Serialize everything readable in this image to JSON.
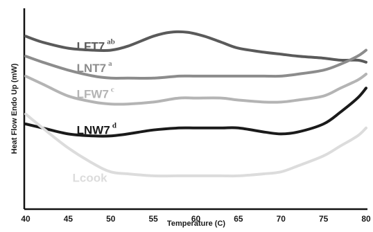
{
  "chart_data": {
    "type": "line",
    "title": "",
    "xlabel": "Temperature (C)",
    "ylabel": "Heat Flow Endo Up (mW)",
    "xlim": [
      40,
      80
    ],
    "x_ticks": [
      "40",
      "45",
      "50",
      "55",
      "60",
      "65",
      "70",
      "75",
      "80"
    ],
    "y_ticks_shown": false,
    "grid": false,
    "legend": "inline labels",
    "series": [
      {
        "name": "LFT7",
        "superscript": "ab",
        "color": "#5a5a5a",
        "x": [
          40,
          42,
          45,
          48,
          50,
          52,
          55,
          57,
          59,
          61,
          63,
          65,
          68,
          70,
          72,
          75,
          77,
          79,
          80
        ],
        "y": [
          0.86,
          0.83,
          0.8,
          0.79,
          0.79,
          0.81,
          0.86,
          0.88,
          0.88,
          0.86,
          0.83,
          0.8,
          0.78,
          0.77,
          0.76,
          0.75,
          0.74,
          0.74,
          0.73
        ]
      },
      {
        "name": "LNT7",
        "superscript": "a",
        "color": "#8c8c8c",
        "x": [
          40,
          42,
          45,
          48,
          50,
          52,
          55,
          58,
          60,
          63,
          65,
          68,
          70,
          72,
          75,
          77,
          79,
          80
        ],
        "y": [
          0.76,
          0.73,
          0.69,
          0.66,
          0.65,
          0.65,
          0.65,
          0.66,
          0.66,
          0.66,
          0.66,
          0.66,
          0.66,
          0.67,
          0.69,
          0.72,
          0.76,
          0.79
        ]
      },
      {
        "name": "LFW7",
        "superscript": "c",
        "color": "#b4b4b4",
        "x": [
          40,
          42,
          45,
          48,
          50,
          52,
          55,
          58,
          60,
          63,
          65,
          68,
          70,
          72,
          75,
          77,
          79,
          80
        ],
        "y": [
          0.66,
          0.62,
          0.56,
          0.53,
          0.52,
          0.52,
          0.53,
          0.55,
          0.55,
          0.55,
          0.54,
          0.53,
          0.53,
          0.54,
          0.56,
          0.6,
          0.64,
          0.67
        ]
      },
      {
        "name": "LNW7",
        "superscript": "d",
        "color": "#1a1a1a",
        "x": [
          40,
          42,
          45,
          48,
          50,
          52,
          55,
          58,
          60,
          63,
          65,
          68,
          70,
          72,
          75,
          77,
          79,
          80
        ],
        "y": [
          0.42,
          0.4,
          0.37,
          0.36,
          0.36,
          0.37,
          0.39,
          0.4,
          0.4,
          0.4,
          0.4,
          0.38,
          0.37,
          0.38,
          0.42,
          0.48,
          0.55,
          0.6
        ]
      },
      {
        "name": "Lcook",
        "superscript": "",
        "color": "#dcdcdc",
        "x": [
          40,
          42,
          45,
          48,
          50,
          52,
          55,
          58,
          60,
          63,
          65,
          68,
          70,
          72,
          75,
          77,
          79,
          80
        ],
        "y": [
          0.47,
          0.4,
          0.3,
          0.22,
          0.18,
          0.17,
          0.16,
          0.16,
          0.16,
          0.16,
          0.16,
          0.17,
          0.18,
          0.21,
          0.26,
          0.31,
          0.36,
          0.4
        ]
      }
    ]
  }
}
